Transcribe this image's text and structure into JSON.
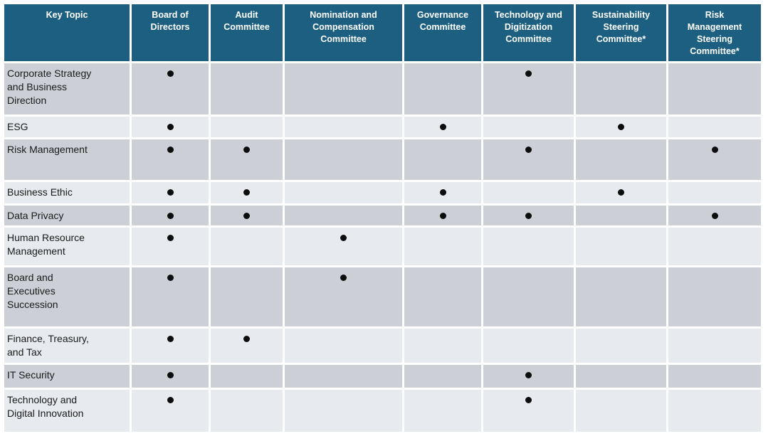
{
  "colors": {
    "header_bg": "#1c5f80",
    "header_text": "#ffffff",
    "row_dark": "#ccd0d6",
    "row_light": "#e7eaee",
    "body_text": "#1a1a1a",
    "dot": "#0d0d0d"
  },
  "table": {
    "columns": [
      {
        "label": "Key Topic"
      },
      {
        "label": "Board of\nDirectors"
      },
      {
        "label": "Audit\nCommittee"
      },
      {
        "label": "Nomination and\nCompensation\nCommittee"
      },
      {
        "label": "Governance\nCommittee"
      },
      {
        "label": "Technology and\nDigitization\nCommittee"
      },
      {
        "label": "Sustainability\nSteering\nCommittee*"
      },
      {
        "label": "Risk\nManagement\nSteering\nCommittee*"
      }
    ],
    "rows": [
      {
        "topic": "Corporate Strategy\nand Business\nDirection",
        "dots": [
          true,
          false,
          false,
          false,
          true,
          false,
          false
        ]
      },
      {
        "topic": "ESG",
        "dots": [
          true,
          false,
          false,
          true,
          false,
          true,
          false
        ]
      },
      {
        "topic": "Risk Management",
        "dots": [
          true,
          true,
          false,
          false,
          true,
          false,
          true
        ]
      },
      {
        "topic": "Business Ethic",
        "dots": [
          true,
          true,
          false,
          true,
          false,
          true,
          false
        ]
      },
      {
        "topic": "Data Privacy",
        "dots": [
          true,
          true,
          false,
          true,
          true,
          false,
          true
        ]
      },
      {
        "topic": "Human Resource\nManagement",
        "dots": [
          true,
          false,
          true,
          false,
          false,
          false,
          false
        ]
      },
      {
        "topic": "Board and\nExecutives\nSuccession",
        "dots": [
          true,
          false,
          true,
          false,
          false,
          false,
          false
        ]
      },
      {
        "topic": "Finance, Treasury,\nand Tax",
        "dots": [
          true,
          true,
          false,
          false,
          false,
          false,
          false
        ]
      },
      {
        "topic": "IT Security",
        "dots": [
          true,
          false,
          false,
          false,
          true,
          false,
          false
        ]
      },
      {
        "topic": "Technology and\nDigital Innovation",
        "dots": [
          true,
          false,
          false,
          false,
          true,
          false,
          false
        ]
      }
    ]
  }
}
